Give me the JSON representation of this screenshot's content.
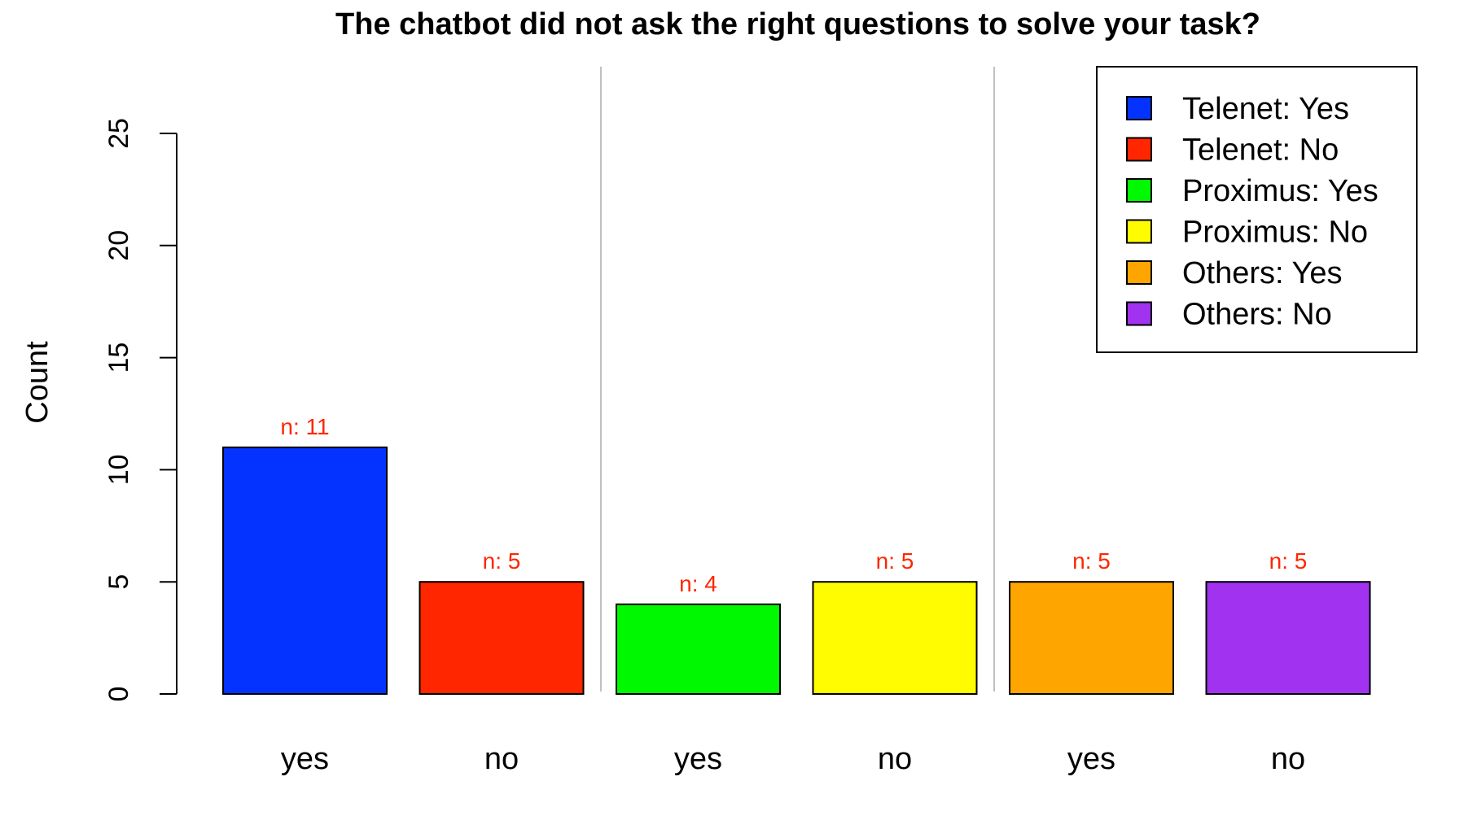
{
  "chart_data": {
    "type": "bar",
    "title": "The chatbot did not ask the right questions to solve your task?",
    "ylabel": "Count",
    "xlabel": "",
    "ylim": [
      0,
      25
    ],
    "yticks": [
      0,
      5,
      10,
      15,
      20,
      25
    ],
    "categories": [
      "yes",
      "no",
      "yes",
      "no",
      "yes",
      "no"
    ],
    "values": [
      11,
      5,
      4,
      5,
      5,
      5
    ],
    "data_labels": [
      "n: 11",
      "n: 5",
      "n: 4",
      "n: 5",
      "n: 5",
      "n: 5"
    ],
    "colors": [
      "#0433FF",
      "#FF2600",
      "#00F900",
      "#FFFB00",
      "#FFA500",
      "#A032F0"
    ],
    "legend": {
      "position": "top-right",
      "entries": [
        {
          "label": "Telenet: Yes",
          "color": "#0433FF"
        },
        {
          "label": "Telenet: No",
          "color": "#FF2600"
        },
        {
          "label": "Proximus: Yes",
          "color": "#00F900"
        },
        {
          "label": "Proximus: No",
          "color": "#FFFB00"
        },
        {
          "label": "Others: Yes",
          "color": "#FFA500"
        },
        {
          "label": "Others: No",
          "color": "#A032F0"
        }
      ]
    },
    "data_label_color": "#FF2600",
    "grid": false
  }
}
